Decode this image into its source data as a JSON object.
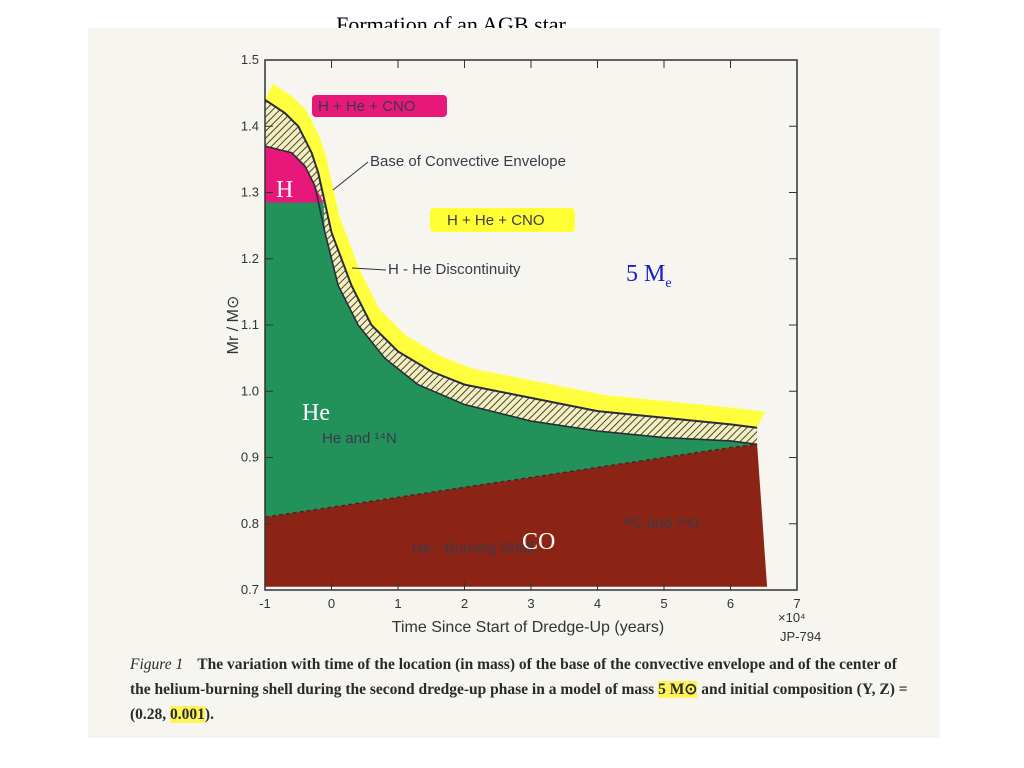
{
  "slide": {
    "title": "Formation of an AGB star ..."
  },
  "chart_data": {
    "type": "area",
    "xlabel": "Time Since Start of Dredge-Up  (years)",
    "ylabel": "Mr / M⊙",
    "x_multiplier": "×10⁴",
    "xlim": [
      -1,
      7
    ],
    "ylim": [
      0.7,
      1.5
    ],
    "x_ticks": [
      -1,
      0,
      1,
      2,
      3,
      4,
      5,
      6,
      7
    ],
    "y_ticks": [
      "0.7",
      "0.8",
      "0.9",
      "1.0",
      "1.1",
      "1.2",
      "1.3",
      "1.4",
      "1.5"
    ],
    "series": [
      {
        "name": "Base of Convective Envelope",
        "x": [
          -1,
          -0.7,
          -0.5,
          -0.3,
          -0.2,
          0,
          0.3,
          0.6,
          1,
          1.5,
          2,
          3,
          4,
          5,
          6,
          6.4
        ],
        "y": [
          1.44,
          1.42,
          1.4,
          1.36,
          1.33,
          1.24,
          1.16,
          1.1,
          1.06,
          1.03,
          1.01,
          0.99,
          0.97,
          0.96,
          0.95,
          0.945
        ]
      },
      {
        "name": "H-He Discontinuity",
        "x": [
          -1,
          -0.6,
          -0.4,
          -0.25,
          -0.1,
          0.1,
          0.4,
          0.8,
          1.3,
          2,
          3,
          4,
          5,
          6,
          6.4
        ],
        "y": [
          1.37,
          1.36,
          1.34,
          1.31,
          1.24,
          1.16,
          1.1,
          1.05,
          1.01,
          0.98,
          0.955,
          0.94,
          0.93,
          0.925,
          0.92
        ]
      },
      {
        "name": "He-Burning Shell",
        "x": [
          -1,
          0,
          1,
          2,
          3,
          4,
          5,
          6,
          6.4
        ],
        "y": [
          0.81,
          0.825,
          0.84,
          0.855,
          0.87,
          0.885,
          0.9,
          0.915,
          0.92
        ]
      }
    ],
    "annotations": {
      "top_label": "H + He + CNO",
      "envelope_label": "H + He + CNO",
      "base_label": "Base of Convective Envelope",
      "discontinuity_label": "H - He Discontinuity",
      "he_region_label": "He and ¹⁴N",
      "shell_label": "He - Burning Shell",
      "co_region_label": "¹²C and ¹⁶O",
      "stamp": "JP-794"
    },
    "overlay_labels": [
      {
        "text": "H",
        "color": "#ffffff"
      },
      {
        "text": "He",
        "color": "#ffffff"
      },
      {
        "text": "CO",
        "color": "#ffffff"
      },
      {
        "text": "5 M",
        "subscript": "e",
        "color": "#1a1acc"
      }
    ],
    "colors": {
      "H_region": "#e8177a",
      "envelope": "#ffff33",
      "He_region": "#23915a",
      "CO_region": "#8b2414",
      "blue_label": "#1a1acc"
    }
  },
  "caption": {
    "figure_label": "Figure 1",
    "text_before": "The variation with time of the location (in mass) of the base of the convective envelope and of the center of the helium-burning shell during the second dredge-up phase in a model of mass ",
    "mass": "5 M⊙",
    "text_mid": " and initial composition (Y, Z) = (0.28, ",
    "z_value": "0.001",
    "text_after": ")."
  }
}
